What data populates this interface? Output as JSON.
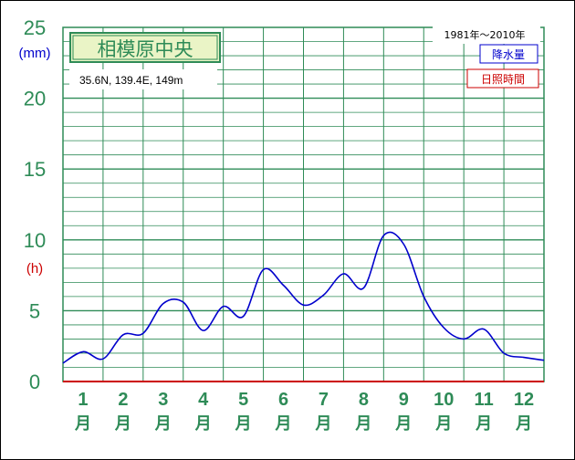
{
  "station": {
    "name": "相模原中央",
    "location": "35.6N,  139.4E,  149m",
    "period": "1981年〜2010年"
  },
  "legend": {
    "precip_label": "降水量",
    "sunshine_label": "日照時間"
  },
  "axis": {
    "y_unit_left": "(mm)",
    "y_unit_sunshine": "(h)",
    "y_ticks": [
      "25",
      "20",
      "15",
      "10",
      "5",
      "0"
    ],
    "months": [
      "1",
      "2",
      "3",
      "4",
      "5",
      "6",
      "7",
      "8",
      "9",
      "10",
      "11",
      "12"
    ],
    "month_suffix": "月"
  },
  "colors": {
    "grid": "#2e8b57",
    "precip_line": "#0000cc",
    "sunshine_line": "#cc0000",
    "title_box_fill": "#eaf4c6"
  },
  "chart_data": {
    "type": "line",
    "title": "相模原中央",
    "ylabel": "(mm)",
    "ylim": [
      0,
      25
    ],
    "grid": true,
    "legend_position": "top-right",
    "x_unit": "month (fractional, half-month steps)",
    "series": [
      {
        "name": "降水量",
        "x": [
          0.5,
          1.0,
          1.5,
          2.0,
          2.5,
          3.0,
          3.5,
          4.0,
          4.5,
          5.0,
          5.5,
          6.0,
          6.5,
          7.0,
          7.5,
          8.0,
          8.5,
          9.0,
          9.5,
          10.0,
          10.5,
          11.0,
          11.5,
          12.0,
          12.5
        ],
        "values": [
          1.3,
          2.1,
          1.6,
          3.3,
          3.4,
          5.5,
          5.6,
          3.6,
          5.3,
          4.6,
          7.9,
          6.8,
          5.4,
          6.1,
          7.6,
          6.6,
          10.3,
          9.7,
          6.0,
          3.8,
          3.0,
          3.7,
          2.0,
          1.7,
          1.5
        ]
      },
      {
        "name": "日照時間",
        "x": [
          0.5,
          12.5
        ],
        "values": [
          0.0,
          0.0
        ]
      }
    ]
  }
}
